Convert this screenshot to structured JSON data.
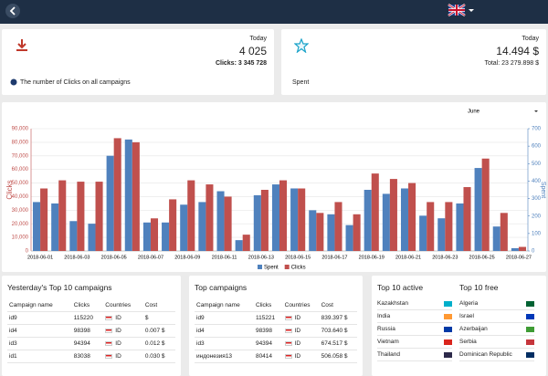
{
  "cards": [
    {
      "period": "Today",
      "value": "4 025",
      "detail": "Clicks: 3 345 728",
      "caption": "The number of Clicks on all campaigns"
    },
    {
      "period": "Today",
      "value": "14.494 $",
      "detail": "Total: 23 279.898 $",
      "caption": "Spent"
    }
  ],
  "chart_data": {
    "type": "bar",
    "month": "June",
    "categories": [
      "2018-06-01",
      null,
      "2018-06-03",
      null,
      "2018-06-05",
      null,
      "2018-06-07",
      null,
      "2018-06-09",
      null,
      "2018-06-11",
      null,
      "2018-06-13",
      null,
      "2018-06-15",
      null,
      "2018-06-17",
      null,
      "2018-06-19",
      null,
      "2018-06-21",
      null,
      "2018-06-23",
      null,
      "2018-06-25",
      null,
      "2018-06-27"
    ],
    "series": [
      {
        "name": "Spent",
        "color": "#4f81bd",
        "axis": "y2",
        "values": [
          280,
          272,
          171,
          156,
          545,
          638,
          163,
          163,
          265,
          280,
          342,
          62,
          319,
          381,
          358,
          233,
          210,
          148,
          350,
          327,
          358,
          202,
          187,
          272,
          475,
          140,
          16
        ]
      },
      {
        "name": "Clicks",
        "color": "#c0504d",
        "values": [
          46000,
          52000,
          51000,
          51000,
          83000,
          80000,
          24000,
          38000,
          52000,
          49000,
          40000,
          12000,
          45000,
          52000,
          46000,
          28000,
          36000,
          27000,
          57000,
          53000,
          50000,
          36000,
          36000,
          47000,
          68000,
          28000,
          3000
        ]
      }
    ],
    "ylabel": "Clicks",
    "y2label": "Spent",
    "ylim": [
      0,
      90000
    ],
    "yticks": [
      0,
      {
        "value": 10000,
        "label": "10,000"
      },
      {
        "value": 20000,
        "label": "20,000"
      },
      {
        "value": 30000,
        "label": "30,000"
      },
      {
        "value": 40000,
        "label": "40,000"
      },
      {
        "value": 50000,
        "label": "50,000"
      },
      {
        "value": 60000,
        "label": "60,000"
      },
      {
        "value": 70000,
        "label": "70,000"
      },
      {
        "value": 80000,
        "label": "80,000"
      },
      {
        "value": 90000,
        "label": "90,000"
      }
    ],
    "y2lim": [
      0,
      700
    ],
    "y2ticks": [
      0,
      100,
      200,
      300,
      400,
      500,
      600,
      700
    ],
    "grid": true,
    "legend": "bottom"
  },
  "tables": [
    {
      "title": "Yesterday's Top 10 campaigns",
      "columns": [
        "Campaign name",
        "Clicks",
        "Countries",
        "Cost"
      ],
      "rows": [
        [
          "id9",
          115220,
          "ID",
          "$"
        ],
        [
          "id4",
          98398,
          "ID",
          "0.007 $"
        ],
        [
          "id3",
          94394,
          "ID",
          "0.012 $"
        ],
        [
          "id1",
          83038,
          "ID",
          "0.030 $"
        ]
      ]
    },
    {
      "title": "Top campaigns",
      "columns": [
        "Campaign name",
        "Clicks",
        "Countries",
        "Cost"
      ],
      "rows": [
        [
          "id9",
          115221,
          "ID",
          "839.397 $"
        ],
        [
          "id4",
          98398,
          "ID",
          "703.640 $"
        ],
        [
          "id3",
          94394,
          "ID",
          "674.517 $"
        ],
        [
          "индонезия13",
          80414,
          "ID",
          "506.058 $"
        ]
      ]
    }
  ],
  "countries": [
    {
      "title": "Top 10 active",
      "items": [
        "Kazakhstan",
        "India",
        "Russia",
        "Vietnam",
        "Thailand"
      ]
    },
    {
      "title": "Top 10 free",
      "items": [
        "Algeria",
        "Israel",
        "Azerbaijan",
        "Serbia",
        "Dominican Republic"
      ]
    }
  ]
}
